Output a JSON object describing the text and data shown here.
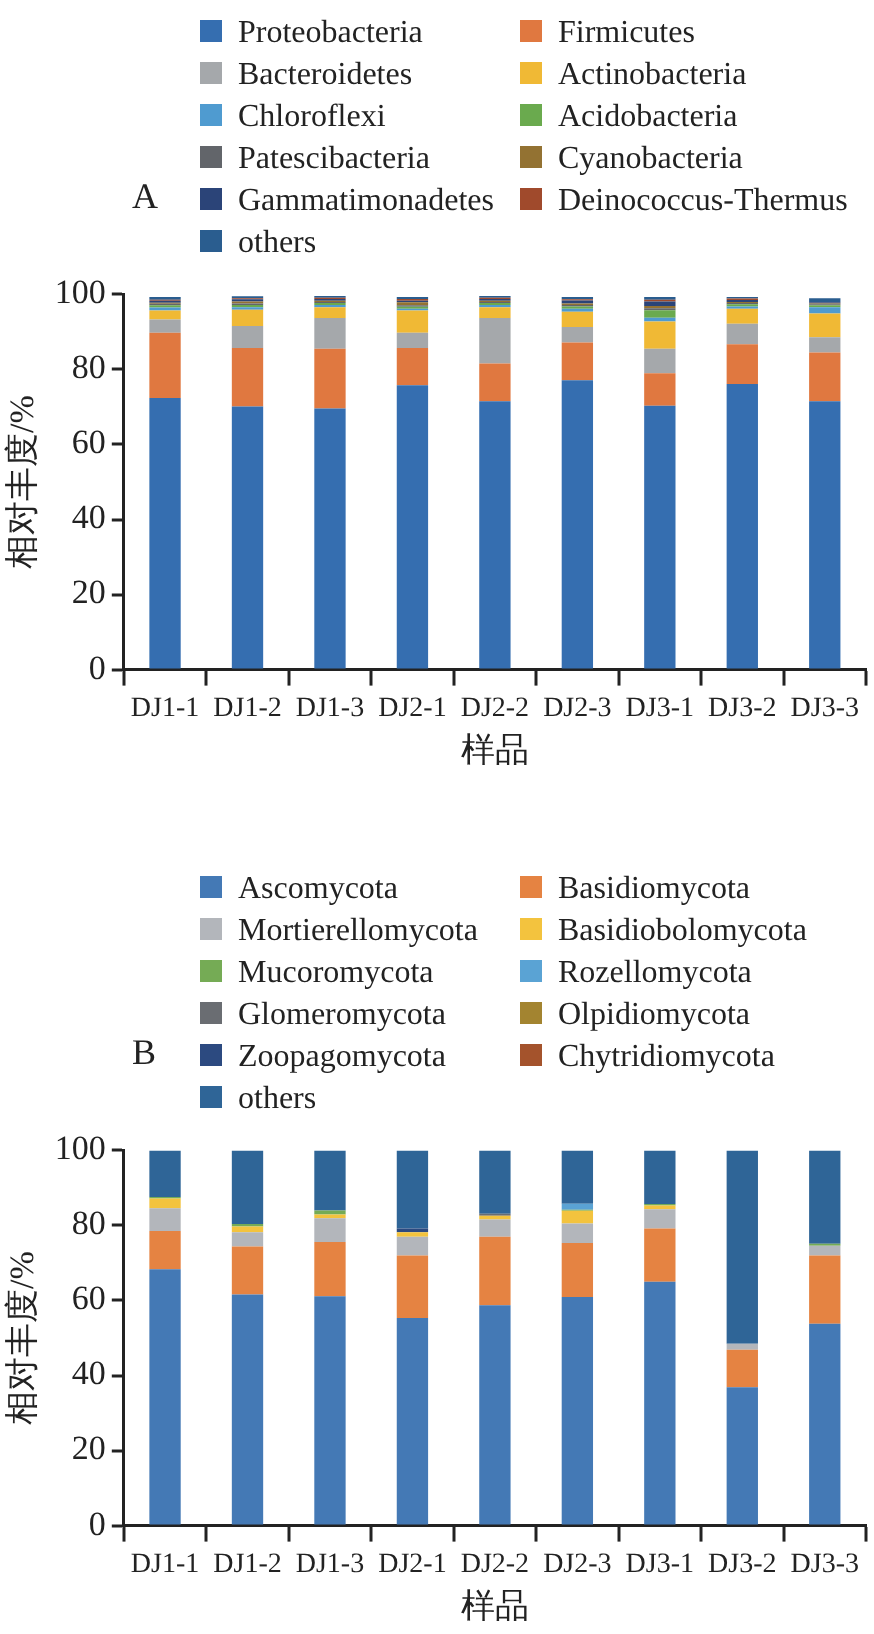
{
  "chart_data": [
    {
      "type": "bar",
      "title": "A",
      "xlabel": "样品",
      "ylabel": "相对丰度/%",
      "stacked": true,
      "legend": "top",
      "ylim": [
        0,
        100
      ],
      "yticks": [
        0,
        20,
        40,
        60,
        80,
        100
      ],
      "categories": [
        "DJ1-1",
        "DJ1-2",
        "DJ1-3",
        "DJ2-1",
        "DJ2-2",
        "DJ2-3",
        "DJ3-1",
        "DJ3-2",
        "DJ3-3"
      ],
      "series": [
        {
          "name": "Proteobacteria",
          "color": "#356eb0",
          "values": [
            72.4,
            70.1,
            69.6,
            75.8,
            71.5,
            77.1,
            70.3,
            76.1,
            71.5
          ]
        },
        {
          "name": "Firmicutes",
          "color": "#e07840",
          "values": [
            17.4,
            15.6,
            15.9,
            9.9,
            10.1,
            10.1,
            8.7,
            10.6,
            13.0
          ]
        },
        {
          "name": "Bacteroidetes",
          "color": "#a5a8ab",
          "values": [
            3.5,
            5.9,
            8.2,
            4.1,
            12.1,
            4.1,
            6.5,
            5.5,
            4.1
          ]
        },
        {
          "name": "Actinobacteria",
          "color": "#f0b935",
          "values": [
            2.4,
            4.3,
            2.9,
            5.9,
            2.9,
            4.1,
            7.3,
            4.0,
            6.3
          ]
        },
        {
          "name": "Chloroflexi",
          "color": "#4f9bd0",
          "values": [
            0.8,
            0.7,
            0.6,
            0.5,
            0.6,
            0.8,
            1.0,
            0.6,
            1.7
          ]
        },
        {
          "name": "Acidobacteria",
          "color": "#6aaa4e",
          "values": [
            0.6,
            0.6,
            0.5,
            0.5,
            0.5,
            0.6,
            2.0,
            0.6,
            0.5
          ]
        },
        {
          "name": "Patescibacteria",
          "color": "#62656a",
          "values": [
            0.4,
            0.4,
            0.3,
            0.4,
            0.3,
            0.4,
            0.5,
            0.3,
            0.3
          ]
        },
        {
          "name": "Cyanobacteria",
          "color": "#937232",
          "values": [
            0.3,
            0.5,
            0.3,
            0.8,
            0.3,
            0.4,
            0.6,
            0.3,
            0.2
          ]
        },
        {
          "name": "Gammatimonadetes",
          "color": "#2b4478",
          "values": [
            0.5,
            0.6,
            0.5,
            0.4,
            0.5,
            0.8,
            1.2,
            0.5,
            0.3
          ]
        },
        {
          "name": "Deinococcus-Thermus",
          "color": "#a04a2c",
          "values": [
            0.3,
            0.3,
            0.3,
            0.5,
            0.3,
            0.3,
            0.5,
            0.4,
            0.1
          ]
        },
        {
          "name": "others",
          "color": "#2a5d8f",
          "values": [
            0.7,
            0.5,
            0.5,
            0.5,
            0.5,
            0.6,
            0.7,
            0.4,
            1.0
          ]
        }
      ]
    },
    {
      "type": "bar",
      "title": "B",
      "xlabel": "样品",
      "ylabel": "相对丰度/%",
      "stacked": true,
      "legend": "top",
      "ylim": [
        0,
        100
      ],
      "yticks": [
        0,
        20,
        40,
        60,
        80,
        100
      ],
      "categories": [
        "DJ1-1",
        "DJ1-2",
        "DJ1-3",
        "DJ2-1",
        "DJ2-2",
        "DJ2-3",
        "DJ3-1",
        "DJ3-2",
        "DJ3-3"
      ],
      "series": [
        {
          "name": "Ascomycota",
          "color": "#4479b5",
          "values": [
            68.3,
            61.6,
            61.1,
            55.3,
            58.7,
            60.9,
            65.0,
            36.9,
            53.8
          ]
        },
        {
          "name": "Basidiomycota",
          "color": "#e58342",
          "values": [
            10.2,
            12.8,
            14.5,
            16.7,
            18.3,
            14.4,
            14.2,
            10.0,
            18.2
          ]
        },
        {
          "name": "Mortierellomycota",
          "color": "#b3b6bb",
          "values": [
            6.1,
            3.8,
            6.3,
            5.0,
            4.6,
            5.2,
            5.1,
            1.6,
            2.6
          ]
        },
        {
          "name": "Basidiobolomycota",
          "color": "#f3c33e",
          "values": [
            2.6,
            1.5,
            1.0,
            1.2,
            1.0,
            3.4,
            1.0,
            0,
            0
          ]
        },
        {
          "name": "Mucoromycota",
          "color": "#75ab55",
          "values": [
            0.4,
            0.7,
            1.1,
            0,
            0,
            0.3,
            0.4,
            0,
            0.5
          ]
        },
        {
          "name": "Rozellomycota",
          "color": "#5aa3d4",
          "values": [
            0,
            0,
            0,
            0,
            0,
            1.6,
            0,
            0,
            0
          ]
        },
        {
          "name": "Glomeromycota",
          "color": "#6a6d72",
          "values": [
            0,
            0,
            0,
            0,
            0.5,
            0,
            0,
            0,
            0
          ]
        },
        {
          "name": "Olpidiomycota",
          "color": "#a38430",
          "values": [
            0,
            0,
            0,
            0,
            0,
            0,
            0,
            0,
            0
          ]
        },
        {
          "name": "Zoopagomycota",
          "color": "#2c4a80",
          "values": [
            0,
            0,
            0,
            1.0,
            0,
            0,
            0,
            0,
            0
          ]
        },
        {
          "name": "Chytridiomycota",
          "color": "#a4532c",
          "values": [
            0,
            0,
            0,
            0,
            0,
            0,
            0,
            0,
            0
          ]
        },
        {
          "name": "others",
          "color": "#2f6597",
          "values": [
            12.4,
            19.6,
            16.0,
            20.8,
            16.9,
            14.2,
            14.3,
            51.5,
            24.9
          ]
        }
      ]
    }
  ]
}
